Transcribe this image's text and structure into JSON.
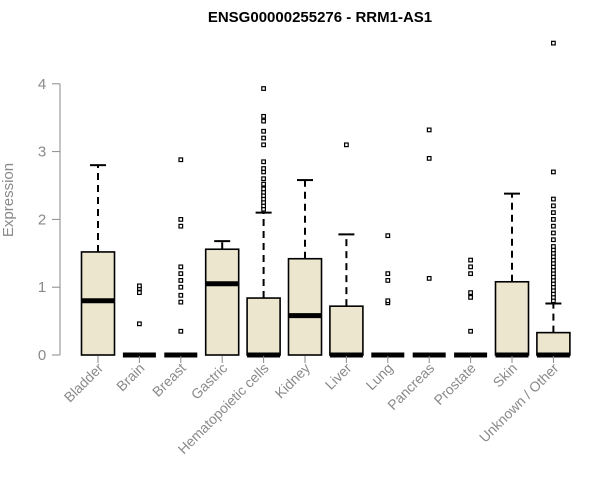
{
  "chart_data": {
    "type": "box",
    "title": "ENSG00000255276 - RRM1-AS1",
    "xlabel": "",
    "ylabel": "Expression",
    "ylim": [
      0,
      4.6
    ],
    "yticks": [
      "0",
      "1",
      "2",
      "3",
      "4"
    ],
    "grid": false,
    "box_fill": "#ede6ce",
    "categories": [
      "Bladder",
      "Brain",
      "Breast",
      "Gastric",
      "Hematopoietic cells",
      "Kidney",
      "Liver",
      "Lung",
      "Pancreas",
      "Prostate",
      "Skin",
      "Unknown / Other"
    ],
    "boxes": [
      {
        "low": 0,
        "q1": 0,
        "median": 0.8,
        "q3": 1.52,
        "high": 2.8,
        "outliers": []
      },
      {
        "low": 0,
        "q1": 0,
        "median": 0,
        "q3": 0,
        "high": 0,
        "outliers": [
          0.46,
          0.92,
          0.98,
          1.02
        ]
      },
      {
        "low": 0,
        "q1": 0,
        "median": 0,
        "q3": 0,
        "high": 0,
        "outliers": [
          0.35,
          0.78,
          0.88,
          1.0,
          1.1,
          1.2,
          1.3,
          1.9,
          2.0,
          2.88
        ]
      },
      {
        "low": 0,
        "q1": 0,
        "median": 1.05,
        "q3": 1.56,
        "high": 1.68,
        "outliers": []
      },
      {
        "low": 0,
        "q1": 0,
        "median": 0,
        "q3": 0.84,
        "high": 2.1,
        "outliers": [
          2.15,
          2.2,
          2.25,
          2.3,
          2.35,
          2.4,
          2.45,
          2.52,
          2.6,
          2.7,
          2.75,
          2.85,
          3.1,
          3.2,
          3.3,
          3.45,
          3.52,
          3.93
        ]
      },
      {
        "low": 0,
        "q1": 0,
        "median": 0.58,
        "q3": 1.42,
        "high": 2.58,
        "outliers": []
      },
      {
        "low": 0,
        "q1": 0,
        "median": 0,
        "q3": 0.72,
        "high": 1.78,
        "outliers": [
          3.1
        ]
      },
      {
        "low": 0,
        "q1": 0,
        "median": 0,
        "q3": 0,
        "high": 0,
        "outliers": [
          0.77,
          0.8,
          1.1,
          1.2,
          1.76
        ]
      },
      {
        "low": 0,
        "q1": 0,
        "median": 0,
        "q3": 0,
        "high": 0,
        "outliers": [
          1.13,
          2.9,
          3.32
        ]
      },
      {
        "low": 0,
        "q1": 0,
        "median": 0,
        "q3": 0,
        "high": 0,
        "outliers": [
          0.35,
          0.85,
          0.92,
          1.2,
          1.3,
          1.4
        ]
      },
      {
        "low": 0,
        "q1": 0,
        "median": 0,
        "q3": 1.08,
        "high": 2.38,
        "outliers": []
      },
      {
        "low": 0,
        "q1": 0,
        "median": 0,
        "q3": 0.33,
        "high": 0.76,
        "outliers": [
          0.8,
          0.85,
          0.9,
          0.95,
          1.0,
          1.05,
          1.1,
          1.15,
          1.2,
          1.25,
          1.3,
          1.35,
          1.4,
          1.45,
          1.5,
          1.55,
          1.6,
          1.7,
          1.8,
          1.9,
          2.0,
          2.1,
          2.2,
          2.3,
          2.7,
          4.6
        ]
      }
    ]
  }
}
